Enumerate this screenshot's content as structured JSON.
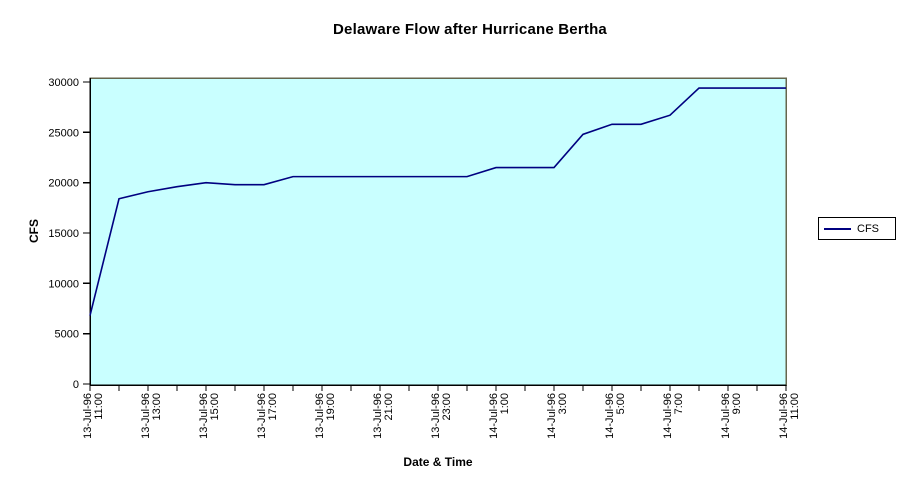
{
  "chart_data": {
    "type": "line",
    "title": "Delaware Flow after Hurricane Bertha",
    "xlabel": "Date & Time",
    "ylabel": "CFS",
    "ylim": [
      0,
      30000
    ],
    "ytick_labels": [
      "0",
      "5000",
      "10000",
      "15000",
      "20000",
      "25000",
      "30000"
    ],
    "x_tick_label_every": 2,
    "grid": false,
    "legend_position": "right",
    "colors": {
      "background": "#ffffff",
      "plot_bg": "#c9ffff",
      "plot_border": "#66664d",
      "axis": "#000000",
      "series_line": "#000080"
    },
    "x": [
      "13-Jul-96 11:00",
      "13-Jul-96 12:00",
      "13-Jul-96 13:00",
      "13-Jul-96 14:00",
      "13-Jul-96 15:00",
      "13-Jul-96 16:00",
      "13-Jul-96 17:00",
      "13-Jul-96 18:00",
      "13-Jul-96 19:00",
      "13-Jul-96 20:00",
      "13-Jul-96 21:00",
      "13-Jul-96 22:00",
      "13-Jul-96 23:00",
      "14-Jul-96 0:00",
      "14-Jul-96 1:00",
      "14-Jul-96 2:00",
      "14-Jul-96 3:00",
      "14-Jul-96 4:00",
      "14-Jul-96 5:00",
      "14-Jul-96 6:00",
      "14-Jul-96 7:00",
      "14-Jul-96 8:00",
      "14-Jul-96 9:00",
      "14-Jul-96 10:00",
      "14-Jul-96 11:00"
    ],
    "series": [
      {
        "name": "CFS",
        "values": [
          6800,
          18400,
          19100,
          19600,
          20000,
          19800,
          19800,
          20600,
          20600,
          20600,
          20600,
          20600,
          20600,
          20600,
          21500,
          21500,
          21500,
          24800,
          25800,
          25800,
          26700,
          29400,
          29400,
          29400,
          29400
        ]
      }
    ]
  }
}
